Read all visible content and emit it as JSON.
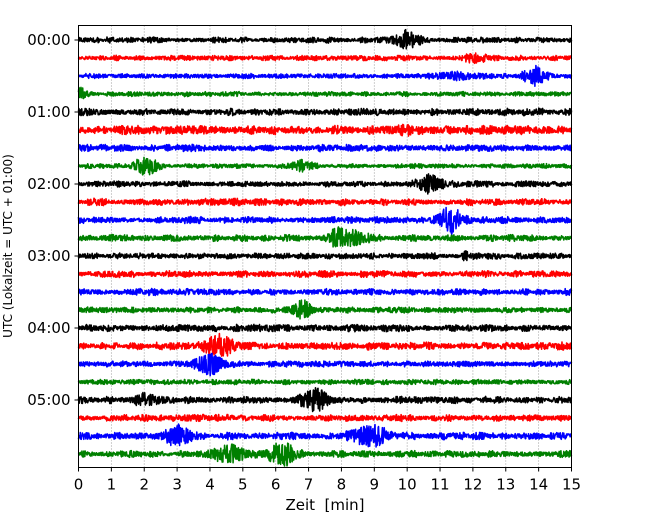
{
  "chart_data": {
    "type": "line",
    "title": "",
    "xlabel": "Zeit  [min]",
    "ylabel": "UTC (Lokalzeit = UTC + 01:00)",
    "xlim": [
      0,
      15
    ],
    "xticks": [
      "0",
      "1",
      "2",
      "3",
      "4",
      "5",
      "6",
      "7",
      "8",
      "9",
      "10",
      "11",
      "12",
      "13",
      "14",
      "15"
    ],
    "yticks": [
      "00:00",
      "01:00",
      "02:00",
      "03:00",
      "04:00",
      "05:00"
    ],
    "grid": "vertical dotted",
    "colors": [
      "#000000",
      "#ff0000",
      "#0000ff",
      "#008000"
    ],
    "traces": [
      {
        "noise": 0.25,
        "events": [
          [
            10.0,
            0.9,
            0.35
          ]
        ]
      },
      {
        "noise": 0.22,
        "events": [
          [
            12.1,
            0.35,
            0.4
          ]
        ]
      },
      {
        "noise": 0.2,
        "events": [
          [
            13.9,
            0.9,
            0.35
          ],
          [
            11.5,
            0.3,
            0.8
          ]
        ]
      },
      {
        "noise": 0.2,
        "events": [
          [
            0.05,
            0.55,
            0.15
          ]
        ]
      },
      {
        "noise": 0.3,
        "events": []
      },
      {
        "noise": 0.38,
        "events": [
          [
            10.0,
            0.4,
            0.2
          ]
        ]
      },
      {
        "noise": 0.3,
        "events": []
      },
      {
        "noise": 0.2,
        "events": [
          [
            2.05,
            0.95,
            0.35
          ],
          [
            6.8,
            0.45,
            0.3
          ]
        ]
      },
      {
        "noise": 0.25,
        "events": [
          [
            10.7,
            1.0,
            0.35
          ]
        ]
      },
      {
        "noise": 0.3,
        "events": []
      },
      {
        "noise": 0.28,
        "events": [
          [
            11.3,
            1.3,
            0.35
          ]
        ]
      },
      {
        "noise": 0.28,
        "events": [
          [
            7.9,
            0.9,
            0.3
          ],
          [
            8.4,
            0.6,
            0.4
          ]
        ]
      },
      {
        "noise": 0.25,
        "events": [
          [
            11.8,
            0.35,
            0.15
          ]
        ]
      },
      {
        "noise": 0.28,
        "events": []
      },
      {
        "noise": 0.28,
        "events": []
      },
      {
        "noise": 0.25,
        "events": [
          [
            6.8,
            0.9,
            0.25
          ]
        ]
      },
      {
        "noise": 0.3,
        "events": []
      },
      {
        "noise": 0.32,
        "events": [
          [
            4.3,
            1.1,
            0.45
          ]
        ]
      },
      {
        "noise": 0.25,
        "events": [
          [
            4.0,
            1.1,
            0.4
          ]
        ]
      },
      {
        "noise": 0.22,
        "events": []
      },
      {
        "noise": 0.3,
        "events": [
          [
            2.0,
            0.6,
            0.3
          ],
          [
            7.2,
            1.1,
            0.4
          ]
        ]
      },
      {
        "noise": 0.28,
        "events": []
      },
      {
        "noise": 0.3,
        "events": [
          [
            3.0,
            1.1,
            0.35
          ],
          [
            8.9,
            1.0,
            0.55
          ]
        ]
      },
      {
        "noise": 0.28,
        "events": [
          [
            4.6,
            0.75,
            0.5
          ],
          [
            6.2,
            1.1,
            0.4
          ]
        ]
      }
    ]
  }
}
